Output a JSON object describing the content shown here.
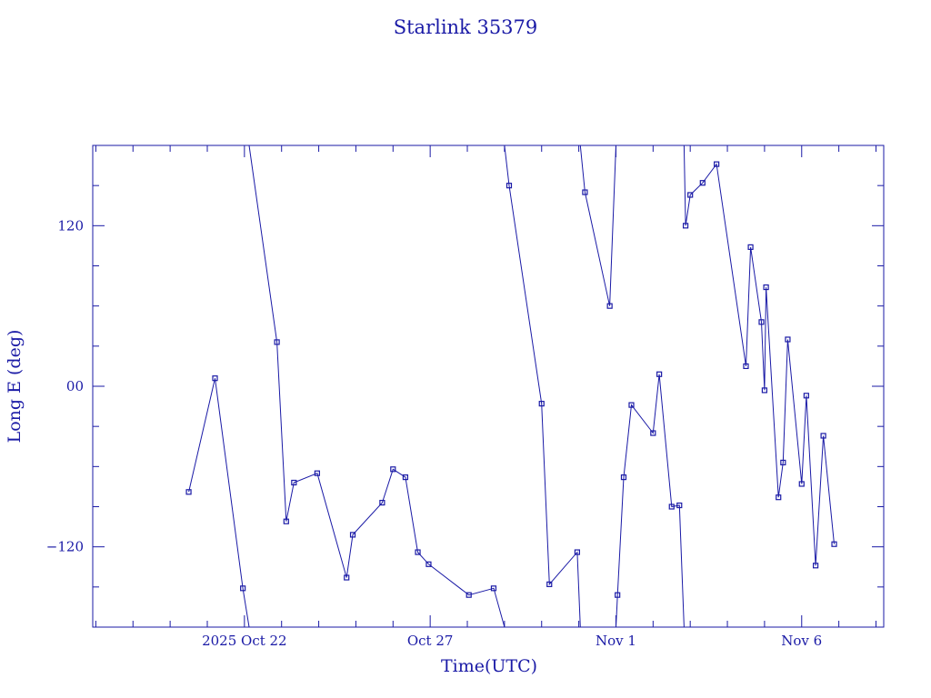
{
  "chart_data": {
    "type": "line",
    "title": "Starlink 35379",
    "xlabel": "Time(UTC)",
    "ylabel": "Long E (deg)",
    "color": "#1a1aa6",
    "xlim": [
      "2025-10-17T22:00",
      "2025-11-08T05:00"
    ],
    "ylim": [
      -180,
      180
    ],
    "x_ticks": [
      {
        "label": "2025 Oct 22",
        "at": "2025-10-22T00:00"
      },
      {
        "label": "Oct 27",
        "at": "2025-10-27T00:00"
      },
      {
        "label": "Nov  1",
        "at": "2025-11-01T00:00"
      },
      {
        "label": "Nov  6",
        "at": "2025-11-06T00:00"
      }
    ],
    "y_ticks": [
      {
        "label": "120",
        "value": 120
      },
      {
        "label": "00",
        "value": 0
      },
      {
        "label": "−120",
        "value": -120
      }
    ],
    "series": [
      {
        "points": [
          [
            "2025-10-20T12:00",
            -79
          ],
          [
            "2025-10-21T05:00",
            6
          ],
          [
            "2025-10-21T23:00",
            -151
          ],
          [
            "2025-10-22T03:00",
            -180
          ],
          null,
          [
            "2025-10-22T03:00",
            180
          ],
          [
            "2025-10-22T21:00",
            33
          ],
          [
            "2025-10-23T03:00",
            -101
          ],
          [
            "2025-10-23T08:00",
            -72
          ],
          [
            "2025-10-23T23:00",
            -65
          ],
          [
            "2025-10-24T18:00",
            -143
          ],
          [
            "2025-10-24T22:00",
            -111
          ],
          [
            "2025-10-25T17:00",
            -87
          ],
          [
            "2025-10-26T00:00",
            -62
          ],
          [
            "2025-10-26T08:00",
            -68
          ],
          [
            "2025-10-26T16:00",
            -124
          ],
          [
            "2025-10-26T23:00",
            -133
          ],
          [
            "2025-10-28T01:00",
            -156
          ],
          [
            "2025-10-28T17:00",
            -151
          ],
          [
            "2025-10-29T00:00",
            -180
          ],
          null,
          [
            "2025-10-29T00:00",
            180
          ],
          [
            "2025-10-29T03:00",
            150
          ],
          [
            "2025-10-30T00:00",
            -13
          ],
          [
            "2025-10-30T05:00",
            -148
          ],
          [
            "2025-10-30T23:00",
            -124
          ],
          [
            "2025-10-31T01:00",
            -180
          ],
          null,
          [
            "2025-10-31T01:00",
            180
          ],
          [
            "2025-10-31T04:00",
            145
          ],
          [
            "2025-10-31T20:00",
            60
          ],
          [
            "2025-11-01T00:00",
            180
          ],
          null,
          [
            "2025-11-01T00:00",
            -180
          ],
          [
            "2025-11-01T01:00",
            -156
          ],
          [
            "2025-11-01T05:00",
            -68
          ],
          [
            "2025-11-01T10:00",
            -14
          ],
          [
            "2025-11-02T00:00",
            -35
          ],
          [
            "2025-11-02T04:00",
            9
          ],
          [
            "2025-11-02T12:00",
            -90
          ],
          [
            "2025-11-02T17:00",
            -89
          ],
          [
            "2025-11-02T20:00",
            -180
          ],
          null,
          [
            "2025-11-02T20:00",
            180
          ],
          [
            "2025-11-02T21:00",
            120
          ],
          [
            "2025-11-03T00:00",
            143
          ],
          [
            "2025-11-03T08:00",
            152
          ],
          [
            "2025-11-03T17:00",
            166
          ],
          [
            "2025-11-04T12:00",
            15
          ],
          [
            "2025-11-04T15:00",
            104
          ],
          [
            "2025-11-04T22:00",
            48
          ],
          [
            "2025-11-05T00:00",
            -3
          ],
          [
            "2025-11-05T01:00",
            74
          ],
          [
            "2025-11-05T09:00",
            -83
          ],
          [
            "2025-11-05T12:00",
            -57
          ],
          [
            "2025-11-05T15:00",
            35
          ],
          [
            "2025-11-06T00:00",
            -73
          ],
          [
            "2025-11-06T03:00",
            -7
          ],
          [
            "2025-11-06T09:00",
            -134
          ],
          [
            "2025-11-06T14:00",
            -37
          ],
          [
            "2025-11-06T21:00",
            -118
          ]
        ]
      }
    ]
  }
}
